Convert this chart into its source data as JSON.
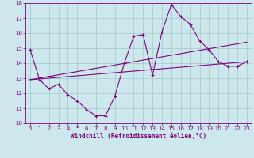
{
  "xlabel": "Windchill (Refroidissement éolien,°C)",
  "ylabel": "",
  "bg_color": "#cce8ec",
  "line_color": "#800080",
  "grid_color": "#a0c8cc",
  "spine_color": "#800080",
  "xlim": [
    -0.5,
    23.5
  ],
  "ylim": [
    10,
    18
  ],
  "xticks": [
    0,
    1,
    2,
    3,
    4,
    5,
    6,
    7,
    8,
    9,
    10,
    11,
    12,
    13,
    14,
    15,
    16,
    17,
    18,
    19,
    20,
    21,
    22,
    23
  ],
  "yticks": [
    10,
    11,
    12,
    13,
    14,
    15,
    16,
    17,
    18
  ],
  "line1_x": [
    0,
    1,
    2,
    3,
    4,
    5,
    6,
    7,
    8,
    9,
    10,
    11,
    12,
    13,
    14,
    15,
    16,
    17,
    18,
    19,
    20,
    21,
    22,
    23
  ],
  "line1_y": [
    14.9,
    12.9,
    12.3,
    12.6,
    11.9,
    11.5,
    10.9,
    10.5,
    10.5,
    11.8,
    14.0,
    15.8,
    15.9,
    13.2,
    16.1,
    17.9,
    17.1,
    16.6,
    15.5,
    14.9,
    14.1,
    13.8,
    13.8,
    14.1
  ],
  "line2_x": [
    0,
    23
  ],
  "line2_y": [
    12.9,
    15.4
  ],
  "line3_x": [
    0,
    23
  ],
  "line3_y": [
    12.9,
    14.1
  ],
  "tick_fontsize": 5.0,
  "xlabel_fontsize": 5.5,
  "marker": "+"
}
